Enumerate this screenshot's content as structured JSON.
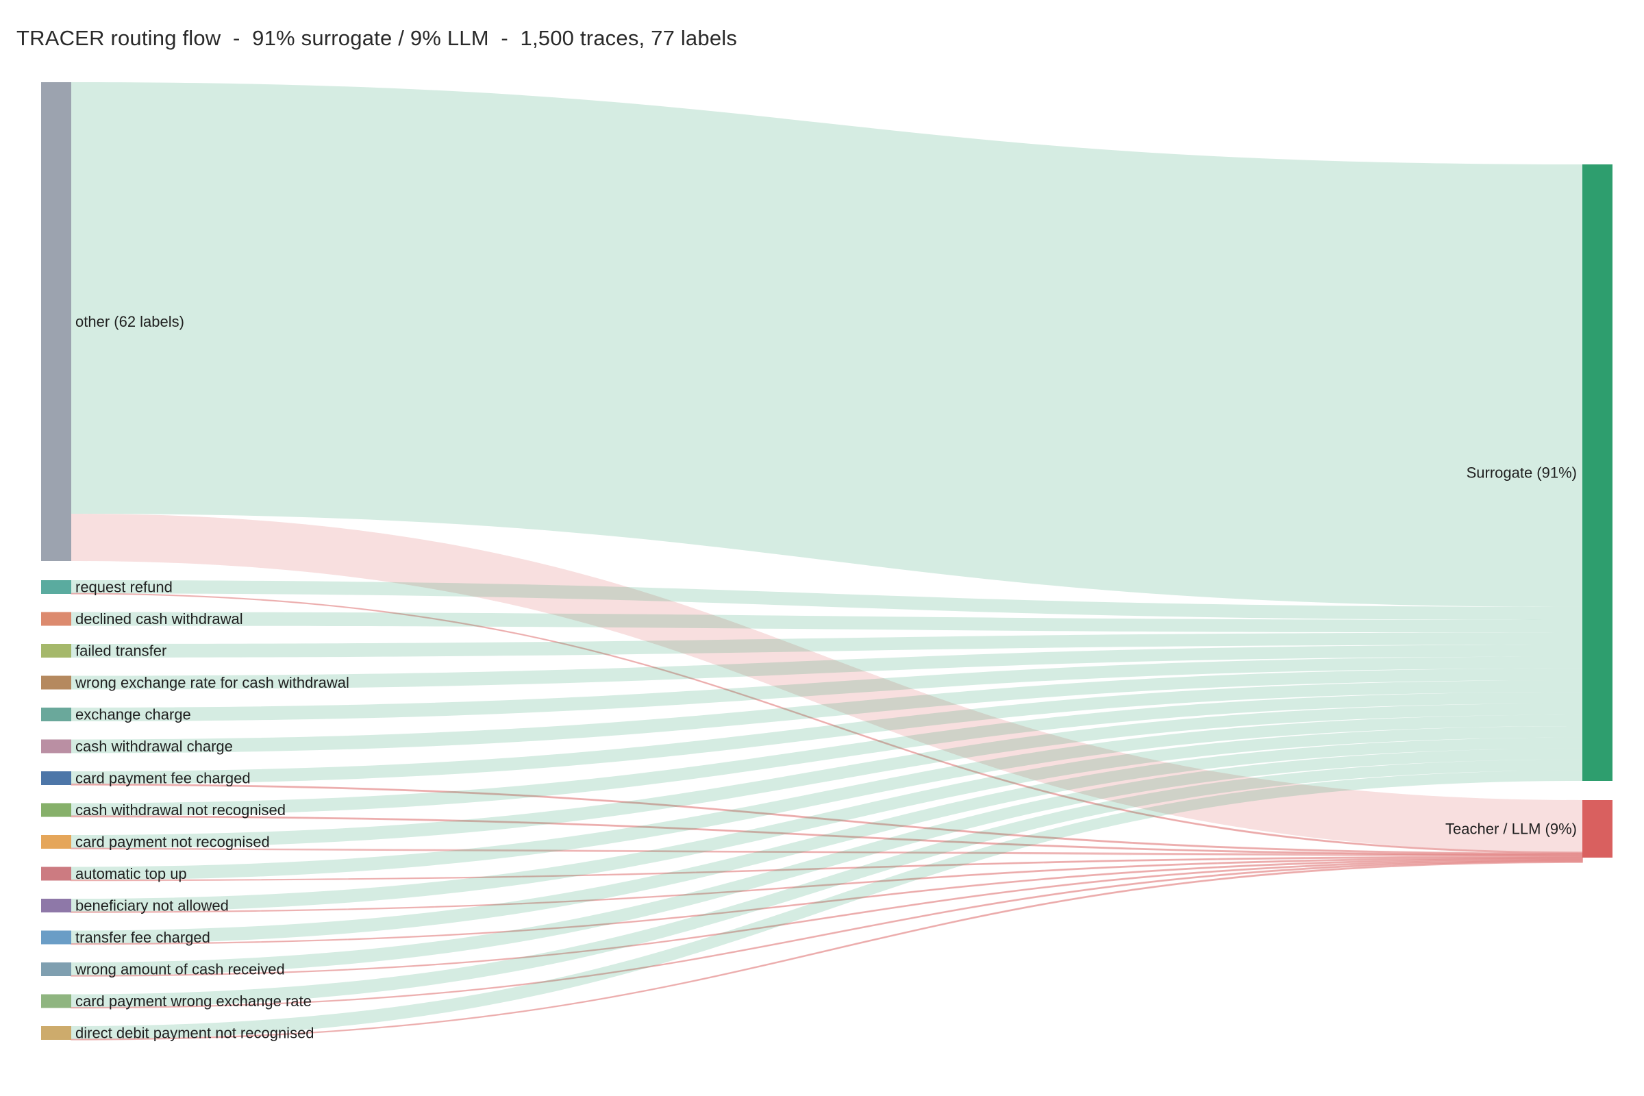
{
  "title": "TRACER routing flow  -  91% surrogate / 9% LLM  -  1,500 traces, 77 labels",
  "chart_data": {
    "type": "sankey",
    "title": "TRACER routing flow  -  91% surrogate / 9% LLM  -  1,500 traces, 77 labels",
    "total_traces": 1500,
    "total_labels": 77,
    "targets": [
      {
        "id": "surrogate",
        "label": "Surrogate  (91%)",
        "color": "#2e9e6e",
        "link_color": "#2e9e6e"
      },
      {
        "id": "teacher",
        "label": "Teacher / LLM  (9%)",
        "color": "#d9605f",
        "link_color": "#e07b7b"
      }
    ],
    "sources": [
      {
        "label": "other (62 labels)",
        "color": "#9ca3af",
        "surrogate": 1050,
        "teacher": 115
      },
      {
        "label": "request refund",
        "color": "#5aab9f",
        "surrogate": 31,
        "teacher": 1
      },
      {
        "label": "declined cash withdrawal",
        "color": "#dc8a6e",
        "surrogate": 30,
        "teacher": 0
      },
      {
        "label": "failed transfer",
        "color": "#a5b86b",
        "surrogate": 29,
        "teacher": 0
      },
      {
        "label": "wrong exchange rate for cash withdrawal",
        "color": "#b5895f",
        "surrogate": 28,
        "teacher": 0
      },
      {
        "label": "exchange charge",
        "color": "#6aa89b",
        "surrogate": 28,
        "teacher": 0
      },
      {
        "label": "cash withdrawal charge",
        "color": "#ba8fa3",
        "surrogate": 28,
        "teacher": 0
      },
      {
        "label": "card payment fee charged",
        "color": "#4d76a8",
        "surrogate": 28,
        "teacher": 2
      },
      {
        "label": "cash withdrawal not recognised",
        "color": "#86b06a",
        "surrogate": 27,
        "teacher": 2
      },
      {
        "label": "card payment not recognised",
        "color": "#e5a65a",
        "surrogate": 27,
        "teacher": 1
      },
      {
        "label": "automatic top up",
        "color": "#cc7b81",
        "surrogate": 27,
        "teacher": 1
      },
      {
        "label": "beneficiary not allowed",
        "color": "#8e78a8",
        "surrogate": 27,
        "teacher": 1
      },
      {
        "label": "transfer fee charged",
        "color": "#6a9dc6",
        "surrogate": 26,
        "teacher": 1
      },
      {
        "label": "wrong amount of cash received",
        "color": "#7f9fb0",
        "surrogate": 26,
        "teacher": 1
      },
      {
        "label": "card payment wrong exchange rate",
        "color": "#8fb580",
        "surrogate": 26,
        "teacher": 1
      },
      {
        "label": "direct debit payment not recognised",
        "color": "#cdab6c",
        "surrogate": 25,
        "teacher": 1
      }
    ],
    "link_opacity": 0.18
  }
}
